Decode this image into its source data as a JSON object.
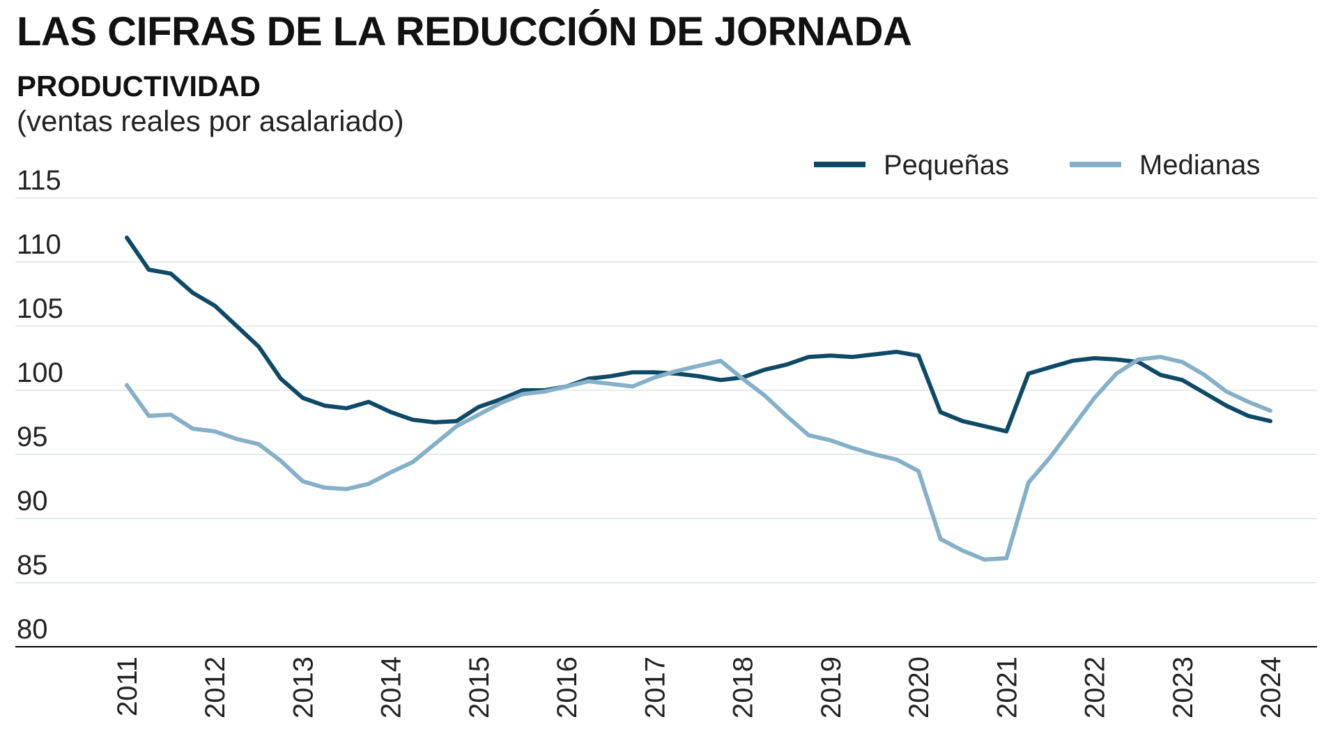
{
  "header": {
    "title": "LAS CIFRAS DE LA REDUCCIÓN DE JORNADA",
    "subtitle": "PRODUCTIVIDAD",
    "note": "(ventas reales por asalariado)"
  },
  "chart_data": {
    "type": "line",
    "title": "PRODUCTIVIDAD",
    "subtitle": "(ventas reales por asalariado)",
    "xlabel": "",
    "ylabel": "",
    "ylim": [
      80,
      115
    ],
    "yticks": [
      80,
      85,
      90,
      95,
      100,
      105,
      110,
      115
    ],
    "xlim": [
      2011,
      2024
    ],
    "xticks": [
      "2011",
      "2012",
      "2013",
      "2014",
      "2015",
      "2016",
      "2017",
      "2018",
      "2019",
      "2020",
      "2021",
      "2022",
      "2023",
      "2024"
    ],
    "grid": true,
    "legend_position": "top-right",
    "series": [
      {
        "name": "Pequeñas",
        "color": "#0e4a66",
        "x": [
          2011.0,
          2011.25,
          2011.5,
          2011.75,
          2012.0,
          2012.25,
          2012.5,
          2012.75,
          2013.0,
          2013.25,
          2013.5,
          2013.75,
          2014.0,
          2014.25,
          2014.5,
          2014.75,
          2015.0,
          2015.25,
          2015.5,
          2015.75,
          2016.0,
          2016.25,
          2016.5,
          2016.75,
          2017.0,
          2017.25,
          2017.5,
          2017.75,
          2018.0,
          2018.25,
          2018.5,
          2018.75,
          2019.0,
          2019.25,
          2019.5,
          2019.75,
          2020.0,
          2020.25,
          2020.5,
          2020.75,
          2021.0,
          2021.25,
          2021.5,
          2021.75,
          2022.0,
          2022.25,
          2022.5,
          2022.75,
          2023.0,
          2023.25,
          2023.5,
          2023.75,
          2024.0
        ],
        "values": [
          111.9,
          109.4,
          109.1,
          107.6,
          106.6,
          105.0,
          103.4,
          100.9,
          99.4,
          98.8,
          98.6,
          99.1,
          98.3,
          97.7,
          97.5,
          97.6,
          98.7,
          99.3,
          100.0,
          100.0,
          100.3,
          100.9,
          101.1,
          101.4,
          101.4,
          101.3,
          101.1,
          100.8,
          101.0,
          101.6,
          102.0,
          102.6,
          102.7,
          102.6,
          102.8,
          103.0,
          102.7,
          98.3,
          97.6,
          97.2,
          96.8,
          101.3,
          101.8,
          102.3,
          102.5,
          102.4,
          102.2,
          101.2,
          100.8,
          99.8,
          98.8,
          98.0,
          97.6
        ]
      },
      {
        "name": "Medianas",
        "color": "#85b0c8",
        "x": [
          2011.0,
          2011.25,
          2011.5,
          2011.75,
          2012.0,
          2012.25,
          2012.5,
          2012.75,
          2013.0,
          2013.25,
          2013.5,
          2013.75,
          2014.0,
          2014.25,
          2014.5,
          2014.75,
          2015.0,
          2015.25,
          2015.5,
          2015.75,
          2016.0,
          2016.25,
          2016.5,
          2016.75,
          2017.0,
          2017.25,
          2017.5,
          2017.75,
          2018.0,
          2018.25,
          2018.5,
          2018.75,
          2019.0,
          2019.25,
          2019.5,
          2019.75,
          2020.0,
          2020.25,
          2020.5,
          2020.75,
          2021.0,
          2021.25,
          2021.5,
          2021.75,
          2022.0,
          2022.25,
          2022.5,
          2022.75,
          2023.0,
          2023.25,
          2023.5,
          2023.75,
          2024.0
        ],
        "values": [
          100.4,
          98.0,
          98.1,
          97.0,
          96.8,
          96.2,
          95.8,
          94.5,
          92.9,
          92.4,
          92.3,
          92.7,
          93.6,
          94.4,
          95.8,
          97.2,
          98.1,
          99.0,
          99.7,
          99.9,
          100.3,
          100.7,
          100.5,
          100.3,
          101.0,
          101.5,
          101.9,
          102.3,
          100.9,
          99.6,
          98.0,
          96.5,
          96.1,
          95.5,
          95.0,
          94.6,
          93.7,
          88.4,
          87.5,
          86.8,
          86.9,
          92.8,
          94.8,
          97.1,
          99.4,
          101.3,
          102.4,
          102.6,
          102.2,
          101.2,
          99.9,
          99.1,
          98.4
        ]
      }
    ]
  }
}
